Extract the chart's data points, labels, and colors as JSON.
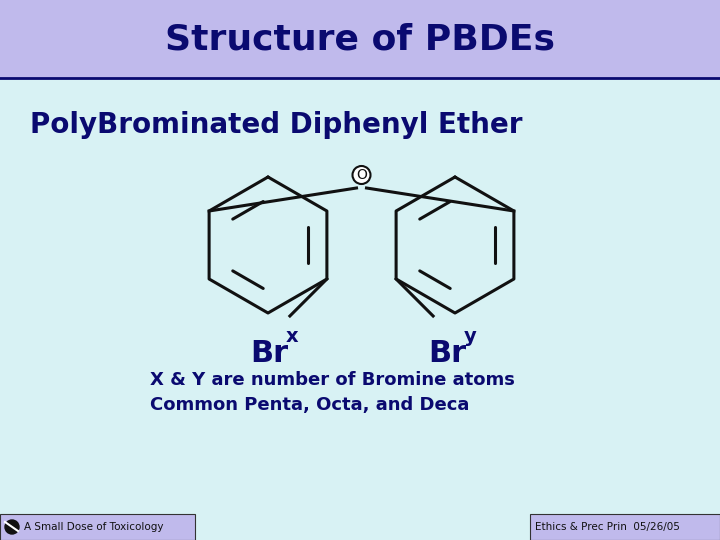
{
  "title": "Structure of PBDEs",
  "subtitle": "PolyBrominated Diphenyl Ether",
  "title_bg": "#c0baec",
  "body_bg": "#d8f2f4",
  "title_color": "#0a0a70",
  "body_text_color": "#0a0a70",
  "mol_color": "#111111",
  "footer_left": "A Small Dose of Toxicology",
  "footer_right": "Ethics & Prec Prin  05/26/05",
  "footer_bg_left": "#c0baec",
  "footer_bg_right": "#c0baec",
  "annotation_line1": "X & Y are number of Bromine atoms",
  "annotation_line2": "Common Penta, Octa, and Deca",
  "title_bar_bottom": 0.852,
  "title_bar_height": 0.148
}
